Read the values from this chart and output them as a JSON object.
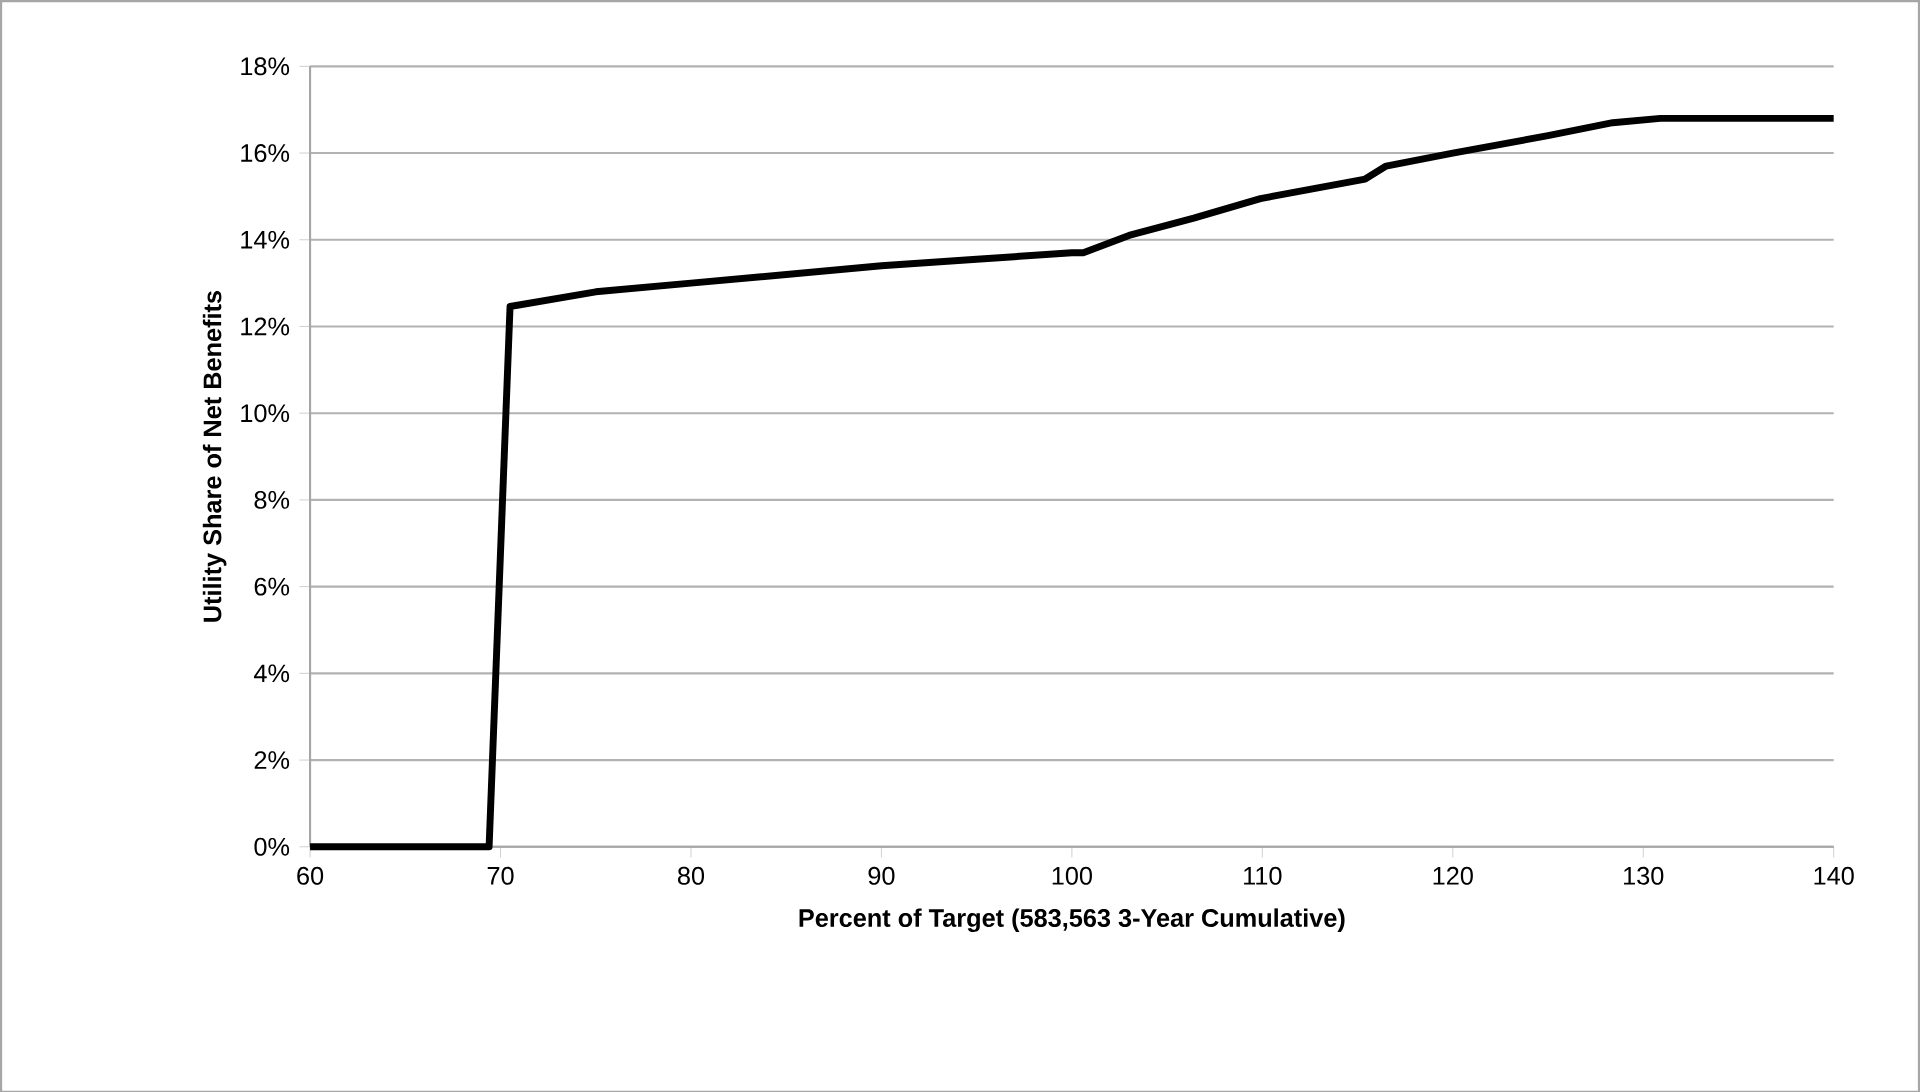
{
  "chart_data": {
    "type": "line",
    "xlabel": "Percent of Target (583,563 3-Year Cumulative)",
    "ylabel": "Utility Share of Net Benefits",
    "x": [
      60,
      69.4,
      70.5,
      75,
      80,
      85,
      90,
      95,
      100,
      100.6,
      103,
      106.4,
      109.9,
      115.4,
      116.5,
      120,
      125,
      128.4,
      130.9,
      140
    ],
    "series": [
      {
        "color": "#000000",
        "values": [
          0,
          0,
          12.46,
          12.8,
          13.0,
          13.2,
          13.4,
          13.55,
          13.7,
          13.7,
          14.1,
          14.5,
          14.95,
          15.4,
          15.7,
          16.0,
          16.4,
          16.7,
          16.8,
          16.8
        ]
      }
    ],
    "xlim": [
      60,
      140
    ],
    "ylim": [
      0,
      18
    ],
    "xticks": [
      60,
      70,
      80,
      90,
      100,
      110,
      120,
      130,
      140
    ],
    "yticks": [
      {
        "value": 0,
        "label": "0%"
      },
      {
        "value": 2,
        "label": "2%"
      },
      {
        "value": 4,
        "label": "4%"
      },
      {
        "value": 6,
        "label": "6%"
      },
      {
        "value": 8,
        "label": "8%"
      },
      {
        "value": 10,
        "label": "10%"
      },
      {
        "value": 12,
        "label": "12%"
      },
      {
        "value": 14,
        "label": "14%"
      },
      {
        "value": 16,
        "label": "16%"
      },
      {
        "value": 18,
        "label": "18%"
      }
    ],
    "grid": "y",
    "marker": "none",
    "line_style": "solid"
  }
}
